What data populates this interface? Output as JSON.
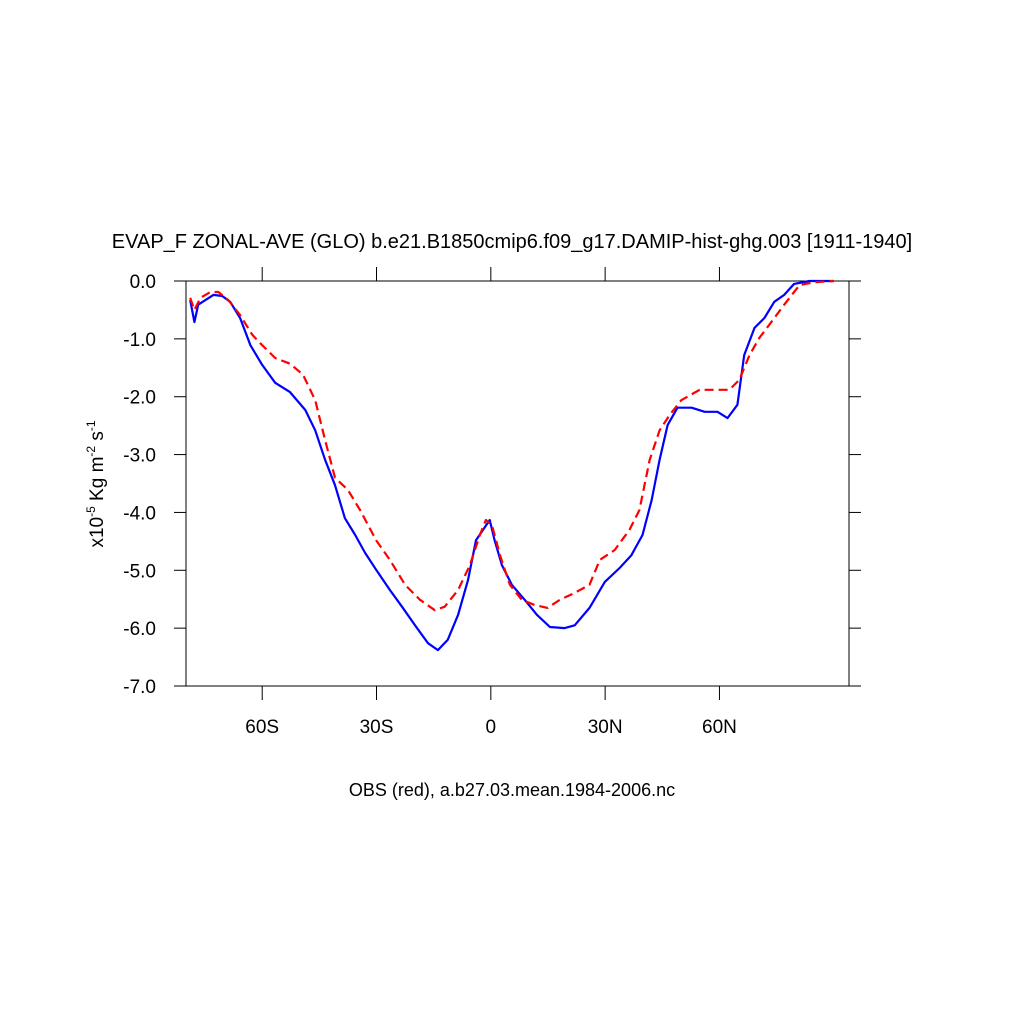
{
  "chart_data": {
    "type": "line",
    "title": "EVAP_F ZONAL-AVE (GLO) b.e21.B1850cmip6.f09_g17.DAMIP-hist-ghg.003 [1911-1940]",
    "ylabel": [
      "x10",
      "-5",
      " Kg m",
      "-2",
      " s",
      "-1"
    ],
    "subtitle": "OBS (red), a.b27.03.mean.1984-2006.nc",
    "xlim": [
      -80,
      94
    ],
    "xticks": [
      {
        "value": -60,
        "label": "60S"
      },
      {
        "value": -30,
        "label": "30S"
      },
      0,
      {
        "value": 30,
        "label": "30N"
      },
      {
        "value": 60,
        "label": "60N"
      }
    ],
    "ylim": [
      -7,
      0
    ],
    "yticks": [
      {
        "value": 0,
        "label": "0.0"
      },
      {
        "value": -1,
        "label": "-1.0"
      },
      {
        "value": -2,
        "label": "-2.0"
      },
      {
        "value": -3,
        "label": "-3.0"
      },
      {
        "value": -4,
        "label": "-4.0"
      },
      {
        "value": -5,
        "label": "-5.0"
      },
      {
        "value": -6,
        "label": "-6.0"
      },
      {
        "value": -7,
        "label": "-7.0"
      }
    ],
    "series": [
      {
        "color": "#0000ff",
        "dashed": false,
        "x": [
          -78.9,
          -77.8,
          -76.8,
          -74.9,
          -72.8,
          -70.5,
          -68.4,
          -65.8,
          -63.1,
          -60,
          -56.6,
          -52.7,
          -48.7,
          -46.1,
          -43.5,
          -40.9,
          -38.3,
          -35.6,
          -33,
          -30.1,
          -26.5,
          -23.3,
          -19.9,
          -16.5,
          -13.9,
          -11.3,
          -8.6,
          -6,
          -3.9,
          -0.3,
          1,
          2.9,
          5.5,
          8.9,
          12.1,
          15.5,
          19.4,
          22,
          25.9,
          29.9,
          33.8,
          36.9,
          39.8,
          42.2,
          44.3,
          46.4,
          49,
          52.7,
          56.1,
          59.5,
          62.1,
          64.7,
          66.5,
          69.2,
          71.8,
          74.4,
          77,
          79.6,
          83.6,
          90
        ],
        "values": [
          -0.33,
          -0.71,
          -0.41,
          -0.33,
          -0.24,
          -0.26,
          -0.36,
          -0.64,
          -1.11,
          -1.45,
          -1.76,
          -1.92,
          -2.23,
          -2.58,
          -3.09,
          -3.53,
          -4.1,
          -4.39,
          -4.7,
          -4.99,
          -5.34,
          -5.63,
          -5.95,
          -6.26,
          -6.38,
          -6.2,
          -5.77,
          -5.17,
          -4.48,
          -4.13,
          -4.48,
          -4.91,
          -5.25,
          -5.51,
          -5.77,
          -5.98,
          -6.0,
          -5.95,
          -5.65,
          -5.2,
          -4.96,
          -4.74,
          -4.39,
          -3.79,
          -3.09,
          -2.49,
          -2.19,
          -2.19,
          -2.26,
          -2.26,
          -2.37,
          -2.14,
          -1.28,
          -0.81,
          -0.64,
          -0.36,
          -0.24,
          -0.05,
          0,
          0
        ]
      },
      {
        "color": "#ff0000",
        "dashed": true,
        "x": [
          -78.9,
          -77.8,
          -76.2,
          -73.6,
          -71.5,
          -68.9,
          -65.8,
          -62.6,
          -60,
          -56.6,
          -52.7,
          -49.3,
          -46.1,
          -43.5,
          -40.9,
          -37.5,
          -34.3,
          -30.1,
          -26.5,
          -22.5,
          -18.6,
          -14.7,
          -12.1,
          -8.6,
          -5.5,
          -2.9,
          -1.3,
          0.3,
          2.4,
          5,
          8.1,
          11.5,
          14.9,
          18.1,
          22,
          25.9,
          28.6,
          32.5,
          36.4,
          39,
          41.7,
          44.3,
          46.9,
          50,
          54.8,
          59.5,
          62.6,
          65.2,
          67.9,
          70.5,
          73.6,
          77,
          81,
          84.9,
          90
        ],
        "values": [
          -0.29,
          -0.5,
          -0.29,
          -0.19,
          -0.19,
          -0.33,
          -0.59,
          -0.93,
          -1.11,
          -1.33,
          -1.43,
          -1.62,
          -2.06,
          -2.75,
          -3.4,
          -3.61,
          -3.96,
          -4.48,
          -4.82,
          -5.25,
          -5.51,
          -5.69,
          -5.63,
          -5.34,
          -4.91,
          -4.39,
          -4.13,
          -4.22,
          -4.74,
          -5.25,
          -5.51,
          -5.6,
          -5.65,
          -5.51,
          -5.39,
          -5.25,
          -4.82,
          -4.65,
          -4.3,
          -3.96,
          -3.09,
          -2.58,
          -2.32,
          -2.06,
          -1.88,
          -1.88,
          -1.88,
          -1.71,
          -1.28,
          -0.98,
          -0.71,
          -0.41,
          -0.07,
          -0.02,
          0
        ]
      }
    ]
  }
}
